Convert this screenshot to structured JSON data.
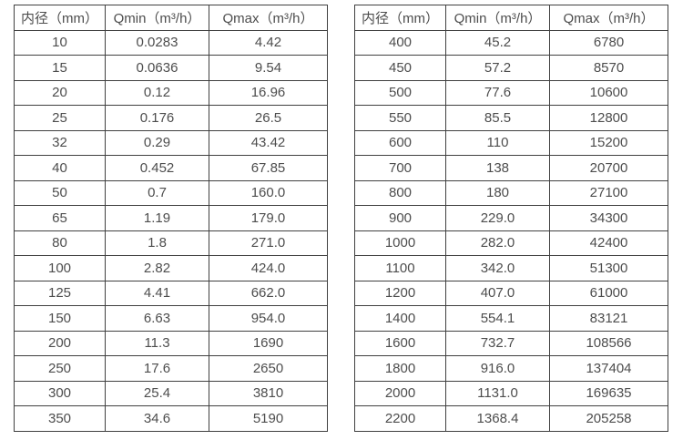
{
  "colors": {
    "background": "#ffffff",
    "text": "#4d4d4d",
    "border": "#404040"
  },
  "tables": [
    {
      "name": "flow-range-table-small-diameters",
      "headers": [
        "内径（mm）",
        "Qmin（m³/h）",
        "Qmax（m³/h）"
      ],
      "rows": [
        [
          "10",
          "0.0283",
          "4.42"
        ],
        [
          "15",
          "0.0636",
          "9.54"
        ],
        [
          "20",
          "0.12",
          "16.96"
        ],
        [
          "25",
          "0.176",
          "26.5"
        ],
        [
          "32",
          "0.29",
          "43.42"
        ],
        [
          "40",
          "0.452",
          "67.85"
        ],
        [
          "50",
          "0.7",
          "160.0"
        ],
        [
          "65",
          "1.19",
          "179.0"
        ],
        [
          "80",
          "1.8",
          "271.0"
        ],
        [
          "100",
          "2.82",
          "424.0"
        ],
        [
          "125",
          "4.41",
          "662.0"
        ],
        [
          "150",
          "6.63",
          "954.0"
        ],
        [
          "200",
          "11.3",
          "1690"
        ],
        [
          "250",
          "17.6",
          "2650"
        ],
        [
          "300",
          "25.4",
          "3810"
        ],
        [
          "350",
          "34.6",
          "5190"
        ]
      ]
    },
    {
      "name": "flow-range-table-large-diameters",
      "headers": [
        "内径（mm）",
        "Qmin（m³/h）",
        "Qmax（m³/h）"
      ],
      "rows": [
        [
          "400",
          "45.2",
          "6780"
        ],
        [
          "450",
          "57.2",
          "8570"
        ],
        [
          "500",
          "77.6",
          "10600"
        ],
        [
          "550",
          "85.5",
          "12800"
        ],
        [
          "600",
          "110",
          "15200"
        ],
        [
          "700",
          "138",
          "20700"
        ],
        [
          "800",
          "180",
          "27100"
        ],
        [
          "900",
          "229.0",
          "34300"
        ],
        [
          "1000",
          "282.0",
          "42400"
        ],
        [
          "1100",
          "342.0",
          "51300"
        ],
        [
          "1200",
          "407.0",
          "61000"
        ],
        [
          "1400",
          "554.1",
          "83121"
        ],
        [
          "1600",
          "732.7",
          "108566"
        ],
        [
          "1800",
          "916.0",
          "137404"
        ],
        [
          "2000",
          "1131.0",
          "169635"
        ],
        [
          "2200",
          "1368.4",
          "205258"
        ]
      ]
    }
  ]
}
